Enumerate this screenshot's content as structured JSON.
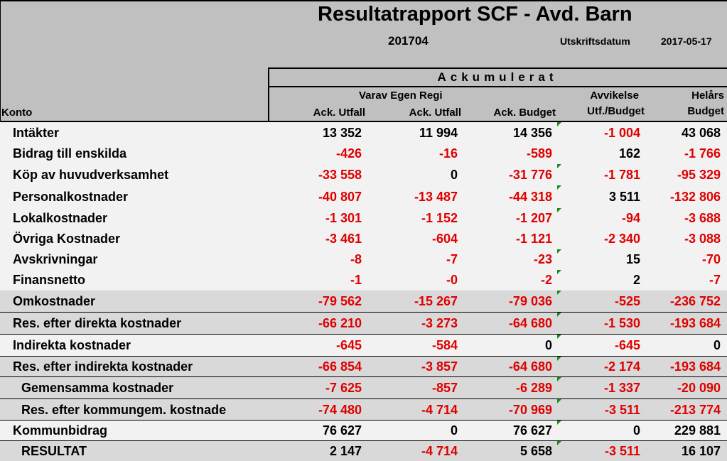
{
  "report": {
    "title": "Resultatrapport  SCF - Avd. Barn",
    "period": "201704",
    "print_label": "Utskriftsdatum",
    "print_date": "2017-05-17"
  },
  "header": {
    "group_label": "Ackumulerat",
    "konto": "Konto",
    "egen_regi": "Varav Egen Regi",
    "col1": "Ack. Utfall",
    "col2": "Ack. Utfall",
    "col3": "Ack. Budget",
    "col4_line1": "Avvikelse",
    "col4_line2": "Utf./Budget",
    "col5_line1": "Helårs",
    "col5_line2": "Budget"
  },
  "rows": [
    {
      "label": "Intäkter",
      "values": [
        "13 352",
        "11 994",
        "14 356",
        "-1 004",
        "43 068"
      ]
    },
    {
      "label": "Bidrag till enskilda",
      "values": [
        "-426",
        "-16",
        "-589",
        "162",
        "-1 766"
      ]
    },
    {
      "label": "Köp av huvudverksamhet",
      "values": [
        "-33 558",
        "0",
        "-31 776",
        "-1 781",
        "-95 329"
      ]
    },
    {
      "label": "Personalkostnader",
      "values": [
        "-40 807",
        "-13 487",
        "-44 318",
        "3 511",
        "-132 806"
      ]
    },
    {
      "label": "Lokalkostnader",
      "values": [
        "-1 301",
        "-1 152",
        "-1 207",
        "-94",
        "-3 688"
      ]
    },
    {
      "label": "Övriga Kostnader",
      "values": [
        "-3 461",
        "-604",
        "-1 121",
        "-2 340",
        "-3 088"
      ]
    },
    {
      "label": "Avskrivningar",
      "values": [
        "-8",
        "-7",
        "-23",
        "15",
        "-70"
      ]
    },
    {
      "label": "Finansnetto",
      "values": [
        "-1",
        "-0",
        "-2",
        "2",
        "-7"
      ]
    },
    {
      "label": "Omkostnader",
      "values": [
        "-79 562",
        "-15 267",
        "-79 036",
        "-525",
        "-236 752"
      ]
    },
    {
      "label": "Res. efter direkta kostnader",
      "values": [
        "-66 210",
        "-3 273",
        "-64 680",
        "-1 530",
        "-193 684"
      ]
    },
    {
      "label": "Indirekta kostnader",
      "values": [
        "-645",
        "-584",
        "0",
        "-645",
        "0"
      ]
    },
    {
      "label": "Res. efter indirekta kostnader",
      "values": [
        "-66 854",
        "-3 857",
        "-64 680",
        "-2 174",
        "-193 684"
      ]
    },
    {
      "label": "Gemensamma kostnader",
      "values": [
        "-7 625",
        "-857",
        "-6 289",
        "-1 337",
        "-20 090"
      ]
    },
    {
      "label": "Res. efter kommungem. kostnade",
      "values": [
        "-74 480",
        "-4 714",
        "-70 969",
        "-3 511",
        "-213 774"
      ]
    },
    {
      "label": "Kommunbidrag",
      "values": [
        "76 627",
        "0",
        "76 627",
        "0",
        "229 881"
      ]
    },
    {
      "label": "RESULTAT",
      "values": [
        "2 147",
        "-4 714",
        "5 658",
        "-3 511",
        "16 107"
      ]
    }
  ],
  "colors": {
    "negative": "#e00000",
    "positive": "#000000",
    "light_row": "#f2f2f2",
    "dark_row": "#d9d9d9",
    "marker": "#1a8c1a"
  }
}
